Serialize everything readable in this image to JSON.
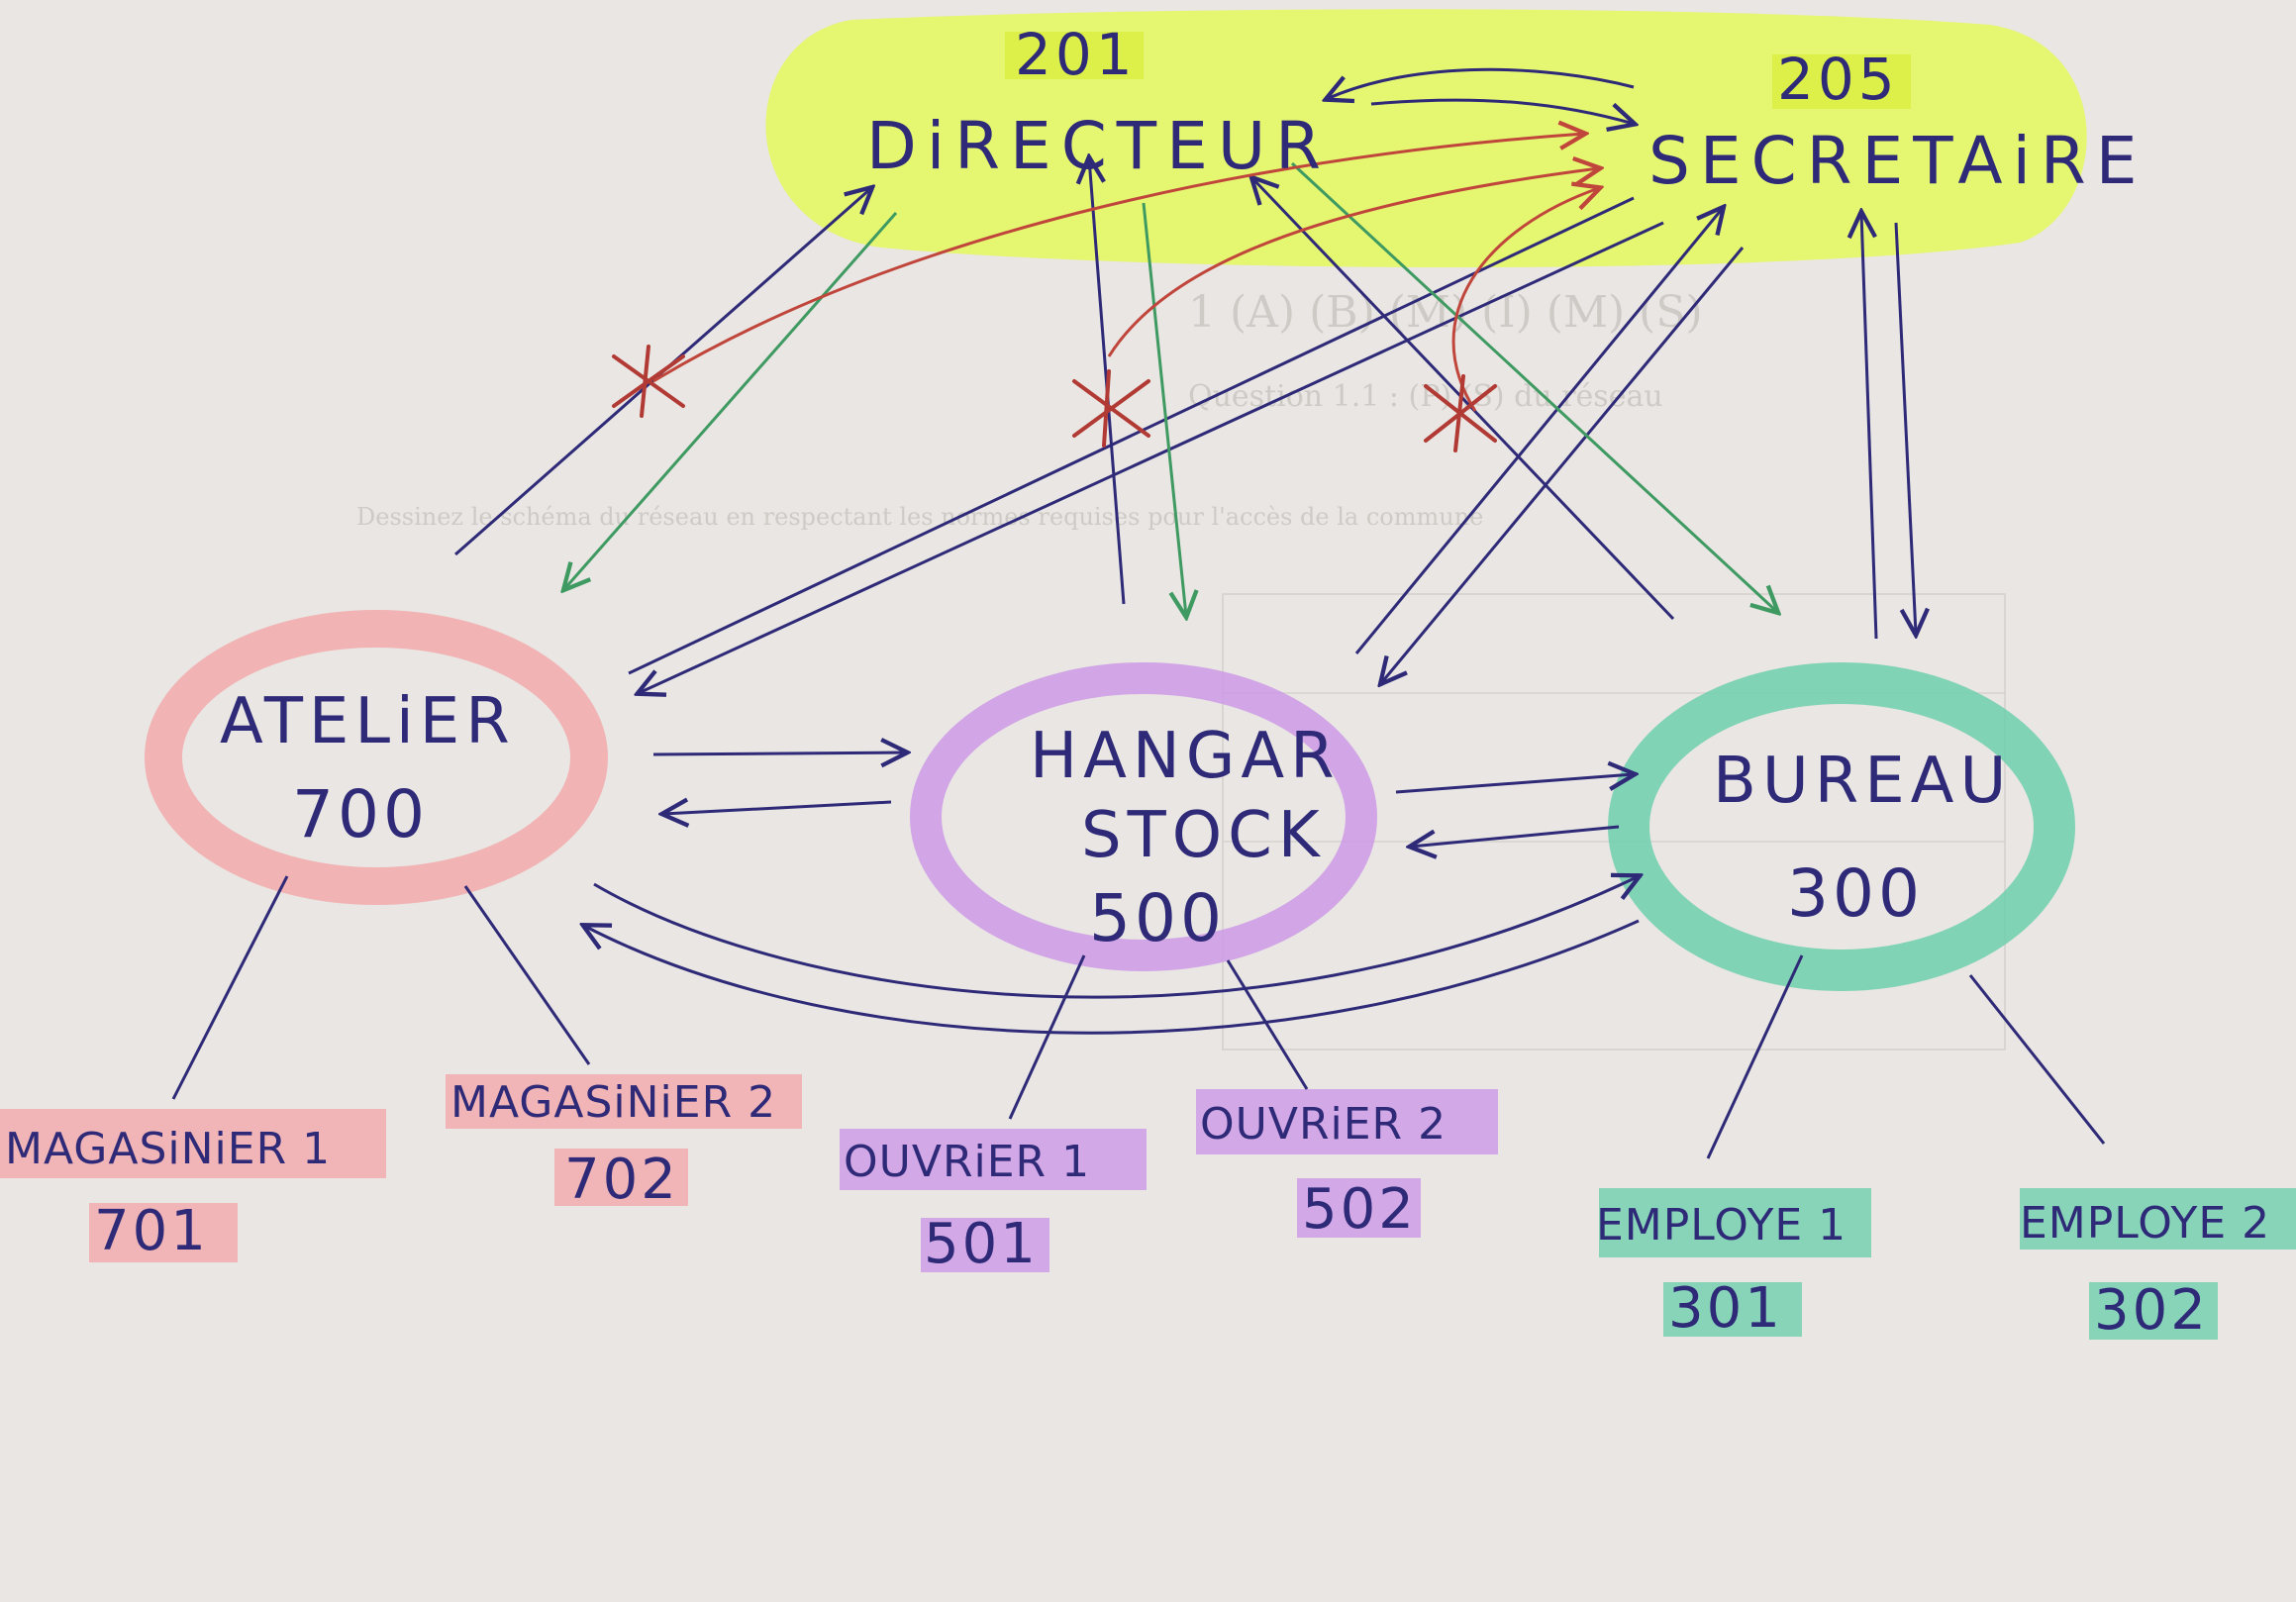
{
  "diagram": {
    "colors": {
      "ink": "#2e2a78",
      "red_ink": "#c0463c",
      "green_ink": "#3f9a62",
      "highlight_yellow": "#e4f764",
      "highlight_pink": "#f2a9ab",
      "highlight_violet": "#cc99e6",
      "highlight_teal": "#6fcfae",
      "paper": "#e9e6e3"
    },
    "top_group": {
      "directeur": {
        "label": "DiRECTEUR",
        "number": "201"
      },
      "secretaire": {
        "label": "SECRETAiRE",
        "number": "205"
      }
    },
    "nodes": {
      "atelier": {
        "label": "ATELiER",
        "number": "700"
      },
      "hangar": {
        "label_line1": "HANGAR",
        "label_line2": "STOCK",
        "number": "500"
      },
      "bureau": {
        "label": "BUREAU",
        "number": "300"
      }
    },
    "employees": {
      "magasinier1": {
        "label": "MAGASiNiER 1",
        "number": "701"
      },
      "magasinier2": {
        "label": "MAGASiNiER 2",
        "number": "702"
      },
      "ouvrier1": {
        "label": "OUVRiER 1",
        "number": "501"
      },
      "ouvrier2": {
        "label": "OUVRiER 2",
        "number": "502"
      },
      "employe1": {
        "label": "EMPLOYE 1",
        "number": "301"
      },
      "employe2": {
        "label": "EMPLOYE 2",
        "number": "302"
      }
    },
    "background_print": {
      "heading": "1  (A) (B) (M) (I) (M) (S)",
      "line1": "Question 1.1 : (P) (S) du réseau",
      "line2": "Dessinez le schéma du réseau en respectant les normes requises pour l'accès de la commune"
    }
  }
}
